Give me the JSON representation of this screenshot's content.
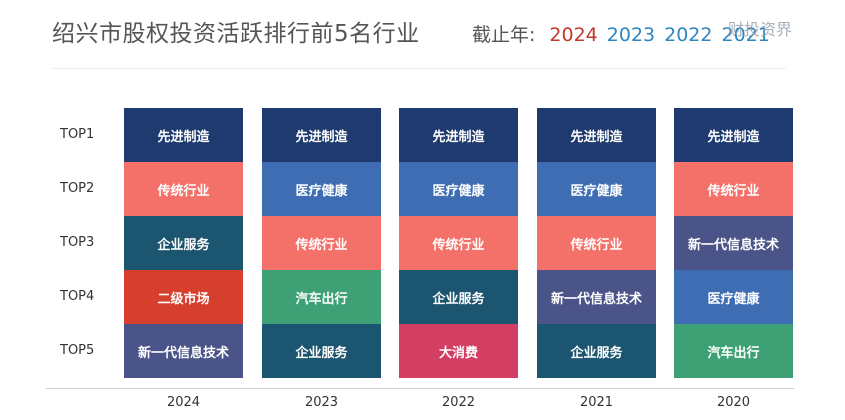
{
  "title": "绍兴市股权投资活跃排行前5名行业",
  "year_nav": {
    "label": "截止年:",
    "years": [
      {
        "text": "2024",
        "color": "#c0392b"
      },
      {
        "text": "2023",
        "color": "#2e86c1"
      },
      {
        "text": "2022",
        "color": "#2e86c1"
      },
      {
        "text": "2021",
        "color": "#2e86c1"
      }
    ]
  },
  "watermark": "财投资界",
  "chart_data": {
    "type": "table",
    "rows": [
      "TOP1",
      "TOP2",
      "TOP3",
      "TOP4",
      "TOP5"
    ],
    "columns": [
      "2024",
      "2023",
      "2022",
      "2021",
      "2020"
    ],
    "cells": [
      [
        "先进制造",
        "传统行业",
        "企业服务",
        "二级市场",
        "新一代信息技术"
      ],
      [
        "先进制造",
        "医疗健康",
        "传统行业",
        "汽车出行",
        "企业服务"
      ],
      [
        "先进制造",
        "医疗健康",
        "传统行业",
        "企业服务",
        "大消费"
      ],
      [
        "先进制造",
        "医疗健康",
        "传统行业",
        "新一代信息技术",
        "企业服务"
      ],
      [
        "先进制造",
        "传统行业",
        "新一代信息技术",
        "医疗健康",
        "汽车出行"
      ]
    ],
    "industry_colors": {
      "先进制造": "#1e3a6e",
      "传统行业": "#f4716a",
      "企业服务": "#1c5570",
      "二级市场": "#d63f2e",
      "新一代信息技术": "#4a5488",
      "医疗健康": "#3f6db3",
      "汽车出行": "#3ea075",
      "大消费": "#d23f63"
    }
  }
}
